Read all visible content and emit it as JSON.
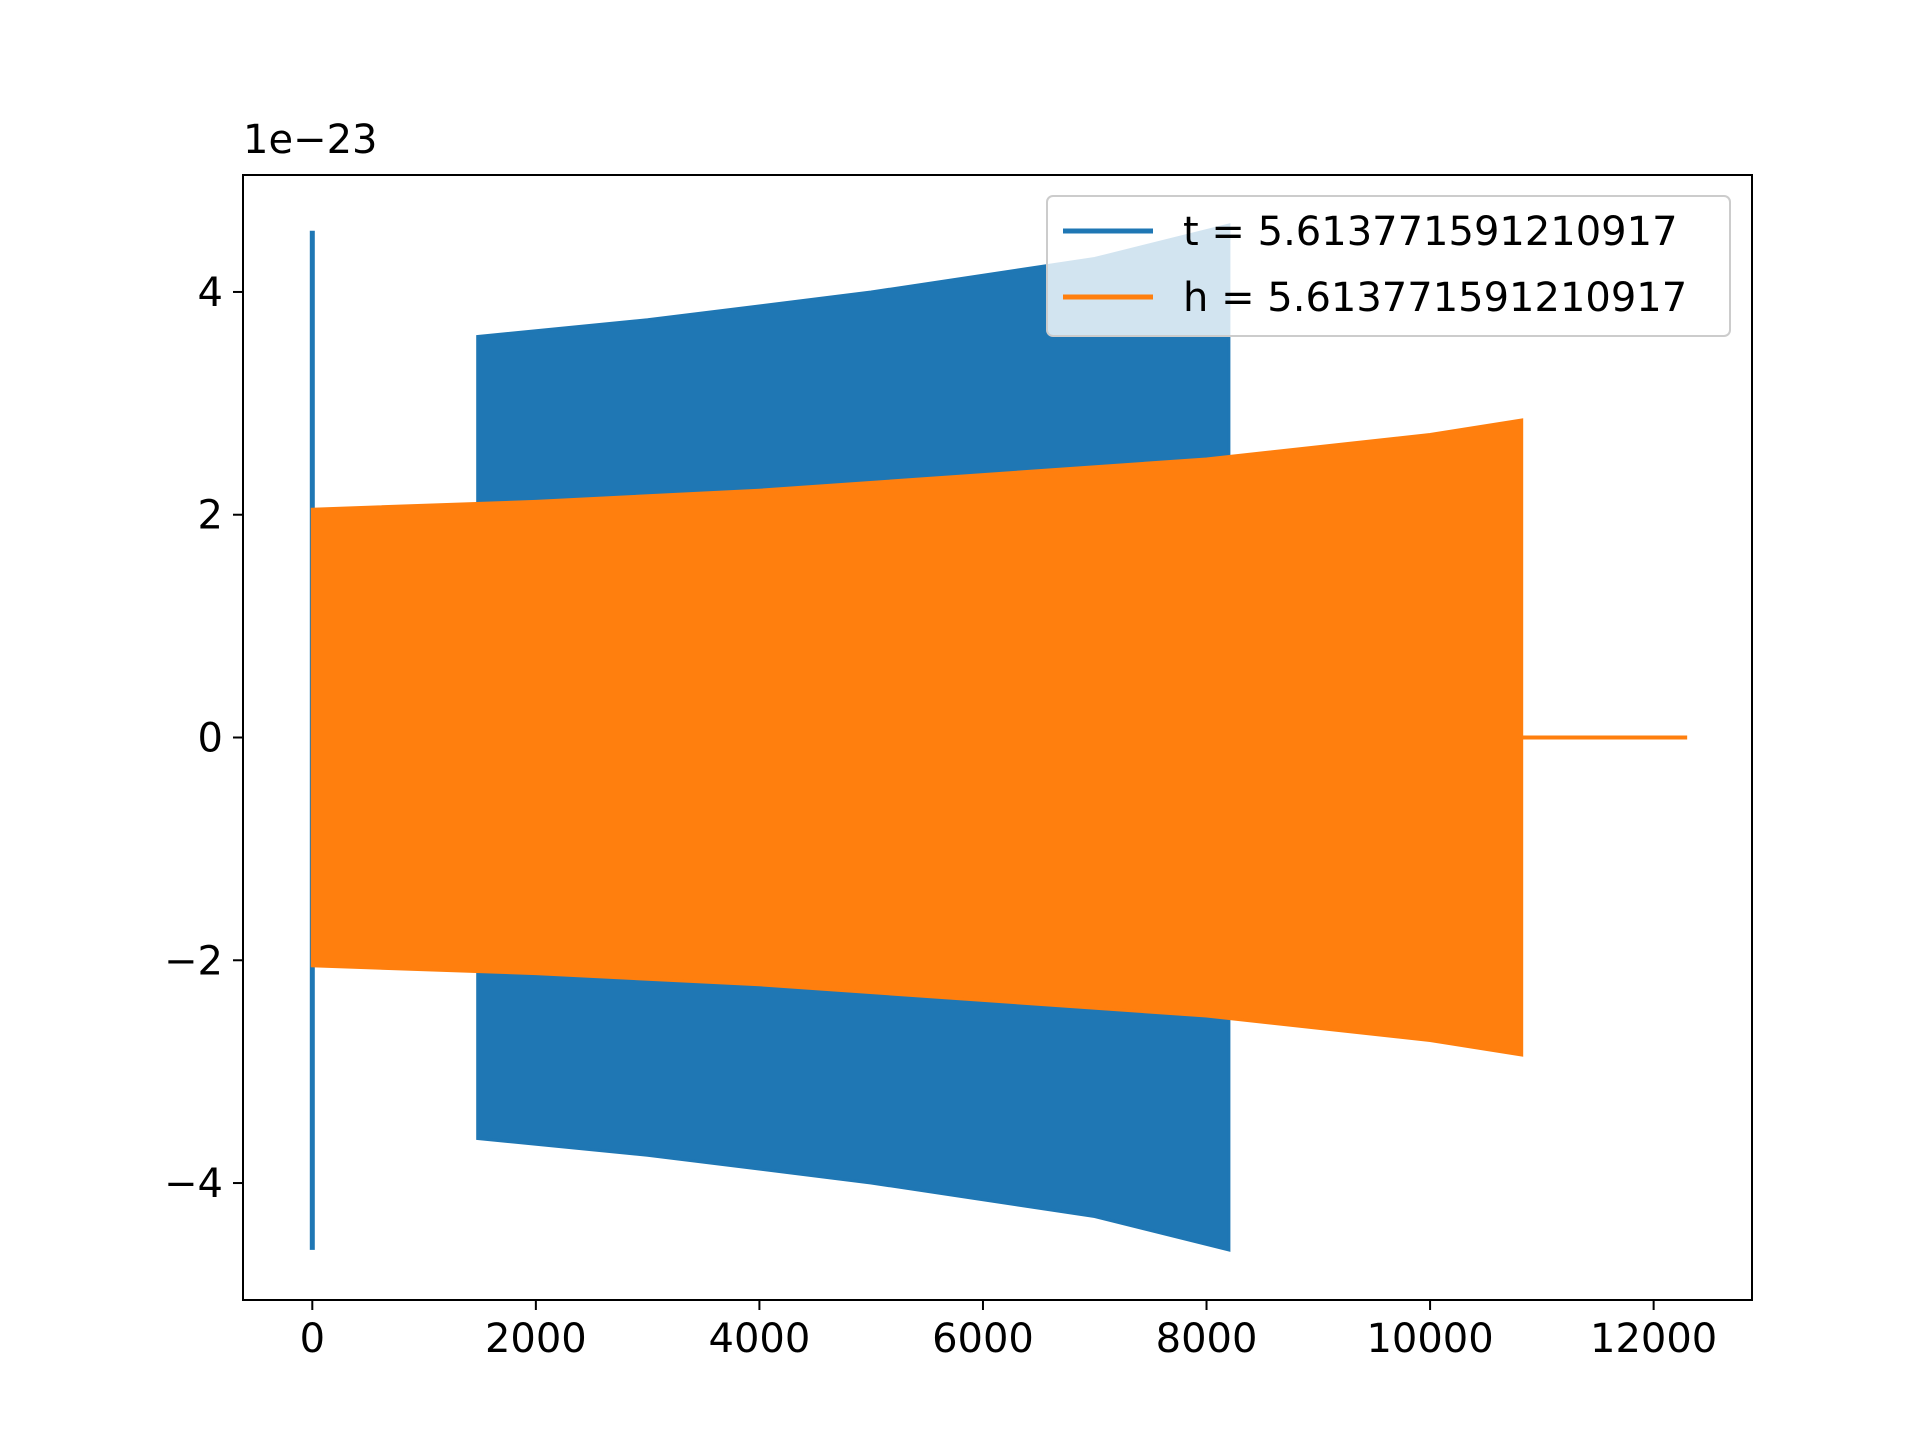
{
  "chart_data": {
    "type": "line",
    "title": "",
    "xlabel": "",
    "ylabel": "",
    "offset_text": "1e−23",
    "xlim": [
      -620,
      12880
    ],
    "ylim": [
      -5.05,
      5.05
    ],
    "xticks": [
      0,
      2000,
      4000,
      6000,
      8000,
      10000,
      12000
    ],
    "xtick_labels": [
      "0",
      "2000",
      "4000",
      "6000",
      "8000",
      "10000",
      "12000"
    ],
    "yticks": [
      -4,
      -2,
      0,
      2,
      4
    ],
    "ytick_labels": [
      "−4",
      "−2",
      "0",
      "2",
      "4"
    ],
    "grid": false,
    "legend_position": "upper-right",
    "series": [
      {
        "name": "t = 5.613771591210917",
        "color": "#1f77b4",
        "description_points": {
          "spike": {
            "x": [
              0,
              10
            ],
            "y_max": 4.55,
            "y_min": -4.6
          },
          "band_start_x": 1480,
          "band_end_x": 8200,
          "upper_envelope": [
            [
              1480,
              3.6
            ],
            [
              3000,
              3.75
            ],
            [
              5000,
              4.0
            ],
            [
              7000,
              4.3
            ],
            [
              8200,
              4.6
            ]
          ],
          "lower_envelope": [
            [
              1480,
              -3.6
            ],
            [
              3000,
              -3.75
            ],
            [
              5000,
              -4.0
            ],
            [
              7000,
              -4.3
            ],
            [
              8200,
              -4.6
            ]
          ]
        }
      },
      {
        "name": "h = 5.613771591210917",
        "color": "#ff7f0e",
        "description_points": {
          "band_start_x": 0,
          "band_end_x": 10820,
          "upper_envelope": [
            [
              0,
              2.05
            ],
            [
              2000,
              2.12
            ],
            [
              4000,
              2.22
            ],
            [
              6000,
              2.36
            ],
            [
              8000,
              2.5
            ],
            [
              10000,
              2.72
            ],
            [
              10820,
              2.85
            ]
          ],
          "lower_envelope": [
            [
              0,
              -2.05
            ],
            [
              2000,
              -2.12
            ],
            [
              4000,
              -2.22
            ],
            [
              6000,
              -2.36
            ],
            [
              8000,
              -2.5
            ],
            [
              10000,
              -2.72
            ],
            [
              10820,
              -2.85
            ]
          ],
          "tail": {
            "x": [
              10820,
              12300
            ],
            "y": 0
          }
        }
      }
    ]
  }
}
